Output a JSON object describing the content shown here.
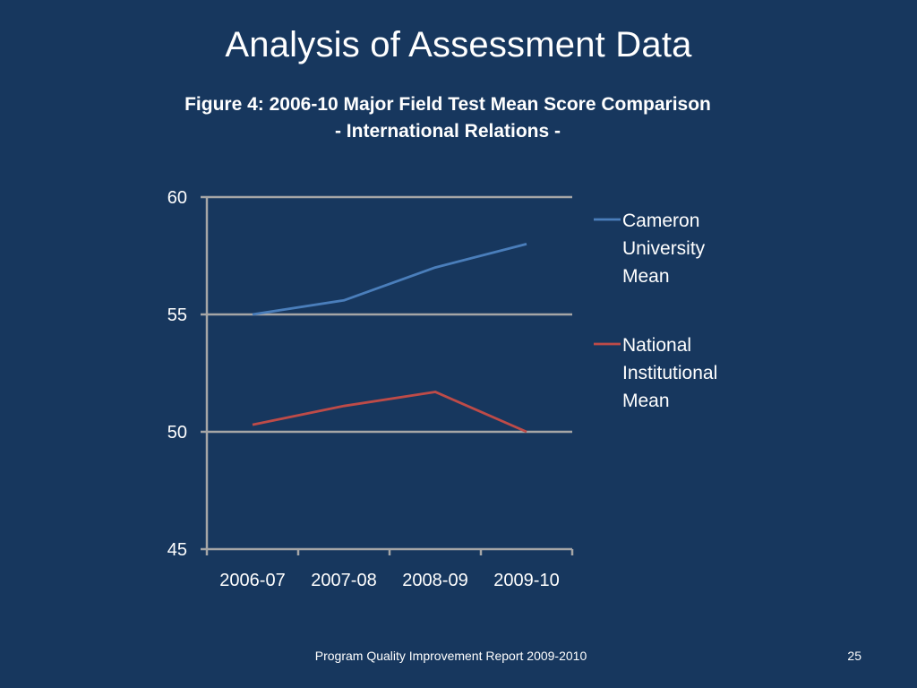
{
  "slide": {
    "title": "Analysis of Assessment Data",
    "footer": "Program Quality Improvement Report 2009-2010",
    "page_number": "25"
  },
  "chart_data": {
    "type": "line",
    "title": "Figure 4: 2006-10 Major Field Test Mean Score Comparison",
    "subtitle": "- International Relations -",
    "categories": [
      "2006-07",
      "2007-08",
      "2008-09",
      "2009-10"
    ],
    "ylim": [
      45,
      60
    ],
    "yticks": [
      45,
      50,
      55,
      60
    ],
    "grid": true,
    "legend_position": "right",
    "series": [
      {
        "name": "Cameron University Mean",
        "legend_lines": [
          "Cameron",
          "University",
          "Mean"
        ],
        "color": "#4a7ebb",
        "values": [
          55.0,
          55.6,
          57.0,
          58.0
        ]
      },
      {
        "name": "National Institutional Mean",
        "legend_lines": [
          "National",
          "Institutional",
          "Mean"
        ],
        "color": "#be4b48",
        "values": [
          50.3,
          51.1,
          51.7,
          50.0
        ]
      }
    ]
  },
  "colors": {
    "background": "#17375e",
    "axis": "#a6a6a6",
    "text": "#ffffff"
  }
}
